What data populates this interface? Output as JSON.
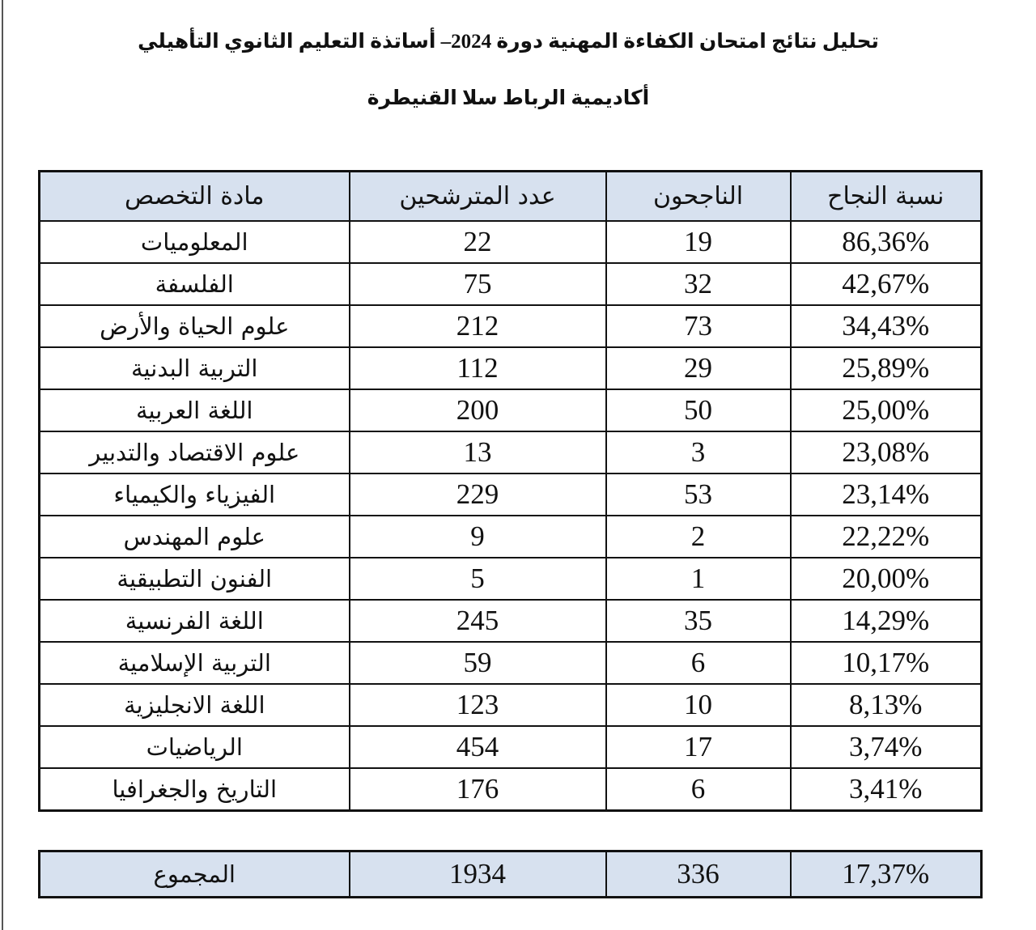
{
  "header": {
    "title": "تحليل نتائج امتحان الكفاءة المهنية  دورة 2024– أساتذة التعليم الثانوي التأهيلي",
    "subtitle": "أكاديمية الرباط سلا القنيطرة"
  },
  "table": {
    "columns": [
      "مادة التخصص",
      "عدد المترشحين",
      "الناجحون",
      "نسبة النجاح"
    ],
    "rows": [
      [
        "المعلوميات",
        22,
        19,
        "86,36%"
      ],
      [
        "الفلسفة",
        75,
        32,
        "42,67%"
      ],
      [
        "علوم الحياة والأرض",
        212,
        73,
        "34,43%"
      ],
      [
        "التربية البدنية",
        112,
        29,
        "25,89%"
      ],
      [
        "اللغة العربية",
        200,
        50,
        "25,00%"
      ],
      [
        "علوم الاقتصاد والتدبير",
        13,
        3,
        "23,08%"
      ],
      [
        "الفيزياء والكيمياء",
        229,
        53,
        "23,14%"
      ],
      [
        "علوم المهندس",
        9,
        2,
        "22,22%"
      ],
      [
        "الفنون التطبيقية",
        5,
        1,
        "20,00%"
      ],
      [
        "اللغة الفرنسية",
        245,
        35,
        "14,29%"
      ],
      [
        "التربية الإسلامية",
        59,
        6,
        "10,17%"
      ],
      [
        "اللغة الانجليزية",
        123,
        10,
        "8,13%"
      ],
      [
        "الرياضيات",
        454,
        17,
        "3,74%"
      ],
      [
        "التاريخ والجغرافيا",
        176,
        6,
        "3,41%"
      ]
    ],
    "total": [
      "المجموع",
      1934,
      336,
      "17,37%"
    ]
  }
}
